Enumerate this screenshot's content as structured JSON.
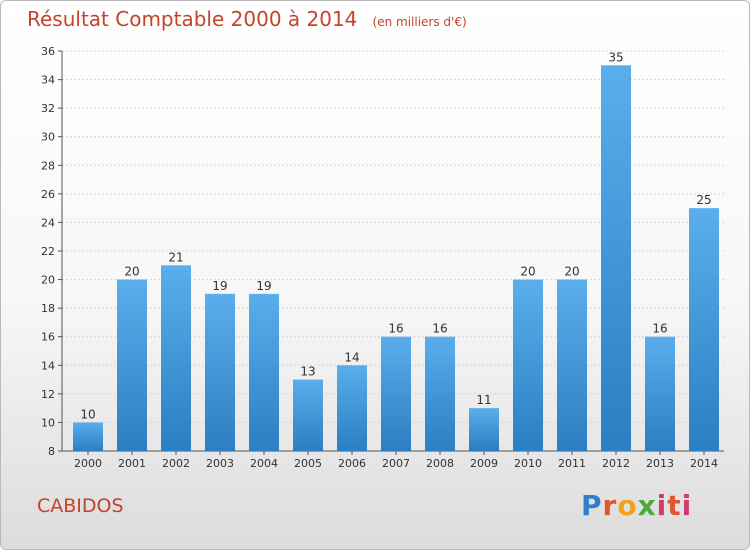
{
  "header": {
    "title": "Résultat Comptable 2000 à 2014",
    "subtitle": "(en milliers d'€)"
  },
  "commune": "CABIDOS",
  "logo": {
    "text": "Proxiti",
    "colors": [
      "#2f7fce",
      "#e0572b",
      "#f2a219",
      "#4ea83a",
      "#d63a6c"
    ]
  },
  "chart_data": {
    "type": "bar",
    "title": "Résultat Comptable 2000 à 2014",
    "subtitle": "(en milliers d'€)",
    "xlabel": "",
    "ylabel": "",
    "categories": [
      "2000",
      "2001",
      "2002",
      "2003",
      "2004",
      "2005",
      "2006",
      "2007",
      "2008",
      "2009",
      "2010",
      "2011",
      "2012",
      "2013",
      "2014"
    ],
    "values": [
      10,
      20,
      21,
      19,
      19,
      13,
      14,
      16,
      16,
      11,
      20,
      20,
      35,
      16,
      25
    ],
    "ylim": [
      8,
      36
    ],
    "yticks": [
      8,
      10,
      12,
      14,
      16,
      18,
      20,
      22,
      24,
      26,
      28,
      30,
      32,
      34,
      36
    ],
    "grid": true,
    "legend": "none",
    "bar_color_top": "#5aaeeb",
    "bar_color_bottom": "#2b7fc2"
  }
}
